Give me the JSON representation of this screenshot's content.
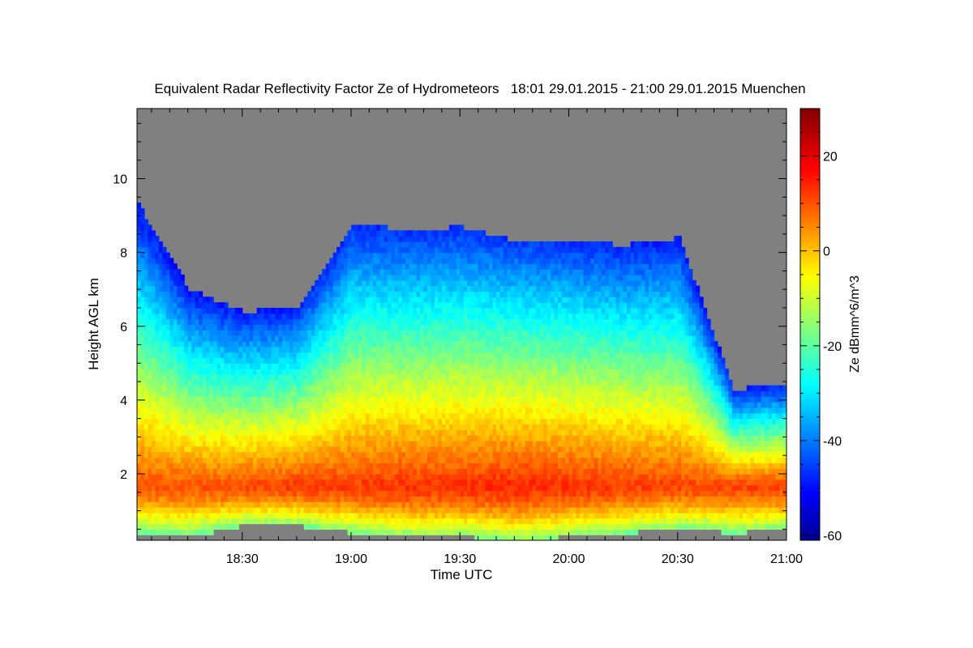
{
  "chart_data": {
    "type": "heatmap",
    "title": "Equivalent Radar Reflectivity Factor Ze of Hydrometeors   18:01 29.01.2015 - 21:00 29.01.2015 Muenchen",
    "xlabel": "Time UTC",
    "ylabel": "Height AGL km",
    "colorbar_label": "Ze dBmm^6/m^3",
    "x_range": [
      "18:01",
      "21:00"
    ],
    "x_ticks": [
      "18:30",
      "19:00",
      "19:30",
      "20:00",
      "20:30",
      "21:00"
    ],
    "ylim": [
      0.2,
      11.9
    ],
    "y_ticks": [
      "2",
      "4",
      "6",
      "8",
      "10"
    ],
    "color_range": [
      -61,
      30
    ],
    "colorbar_ticks": [
      "20",
      "0",
      "-20",
      "-40",
      "-60"
    ],
    "no_data_color": "#808080",
    "colormap": "jet",
    "profiles": [
      {
        "time": "18:01",
        "top_km": 9.3,
        "base_km": 0.4,
        "max_dbz": 10
      },
      {
        "time": "18:15",
        "top_km": 7.0,
        "base_km": 0.3,
        "max_dbz": 10
      },
      {
        "time": "18:30",
        "top_km": 6.4,
        "base_km": 0.6,
        "max_dbz": 11
      },
      {
        "time": "18:45",
        "top_km": 6.5,
        "base_km": 0.6,
        "max_dbz": 12
      },
      {
        "time": "19:00",
        "top_km": 8.8,
        "base_km": 0.4,
        "max_dbz": 12
      },
      {
        "time": "19:15",
        "top_km": 8.6,
        "base_km": 0.3,
        "max_dbz": 13
      },
      {
        "time": "19:30",
        "top_km": 8.7,
        "base_km": 0.3,
        "max_dbz": 13
      },
      {
        "time": "19:45",
        "top_km": 8.3,
        "base_km": 0.2,
        "max_dbz": 14
      },
      {
        "time": "20:00",
        "top_km": 8.3,
        "base_km": 0.3,
        "max_dbz": 13
      },
      {
        "time": "20:15",
        "top_km": 8.2,
        "base_km": 0.4,
        "max_dbz": 12
      },
      {
        "time": "20:30",
        "top_km": 8.4,
        "base_km": 0.5,
        "max_dbz": 11
      },
      {
        "time": "20:45",
        "top_km": 4.3,
        "base_km": 0.4,
        "max_dbz": 11
      },
      {
        "time": "21:00",
        "top_km": 4.4,
        "base_km": 0.5,
        "max_dbz": 12
      }
    ]
  }
}
